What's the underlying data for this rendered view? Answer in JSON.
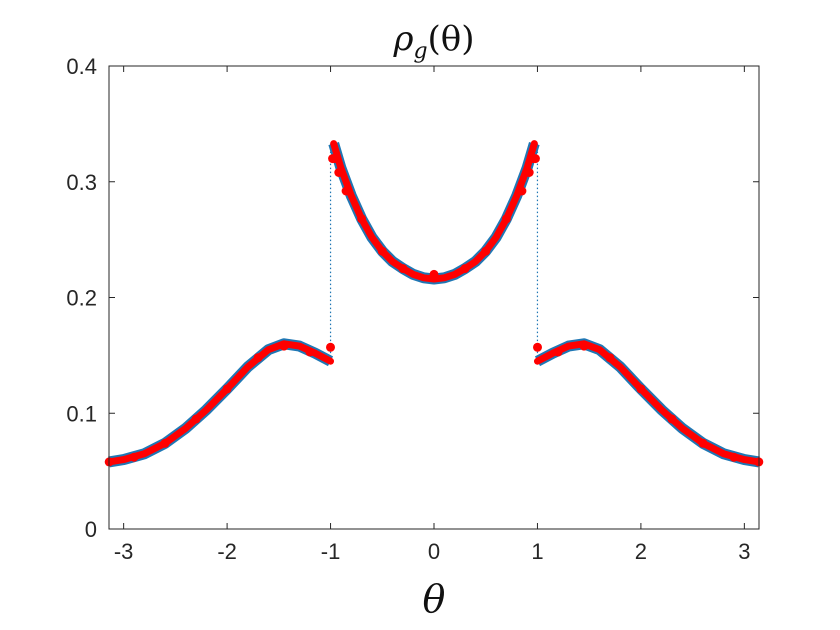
{
  "chart_data": {
    "type": "line",
    "title_parts": {
      "main": "ρ",
      "sub": "g",
      "tail": "(θ)"
    },
    "xlabel": "θ",
    "ylabel": "",
    "xlim": [
      -3.14159,
      3.14159
    ],
    "ylim": [
      0,
      0.4
    ],
    "xticks": [
      -3,
      -2,
      -1,
      0,
      1,
      2,
      3
    ],
    "xtick_labels": [
      "-3",
      "-2",
      "-1",
      "0",
      "1",
      "2",
      "3"
    ],
    "yticks": [
      0,
      0.1,
      0.2,
      0.3,
      0.4
    ],
    "ytick_labels": [
      "0",
      "0.1",
      "0.2",
      "0.3",
      "0.4"
    ],
    "grid": false,
    "legend": "none",
    "series": [
      {
        "kind": "thick-line",
        "color": "#1f77b4",
        "segments": [
          {
            "x": [
              -3.1416,
              -3.0,
              -2.8,
              -2.6,
              -2.4,
              -2.2,
              -2.0,
              -1.8,
              -1.6,
              -1.45,
              -1.3,
              -1.15,
              -1.0
            ],
            "y": [
              0.058,
              0.06,
              0.065,
              0.074,
              0.087,
              0.103,
              0.121,
              0.14,
              0.155,
              0.16,
              0.158,
              0.152,
              0.145
            ]
          },
          {
            "x": [
              -0.97,
              -0.9,
              -0.8,
              -0.7,
              -0.6,
              -0.5,
              -0.4,
              -0.3,
              -0.2,
              -0.1,
              0,
              0.1,
              0.2,
              0.3,
              0.4,
              0.5,
              0.6,
              0.7,
              0.8,
              0.9,
              0.97
            ],
            "y": [
              0.333,
              0.312,
              0.288,
              0.268,
              0.252,
              0.24,
              0.231,
              0.225,
              0.22,
              0.217,
              0.216,
              0.217,
              0.22,
              0.225,
              0.231,
              0.24,
              0.252,
              0.268,
              0.288,
              0.312,
              0.333
            ]
          },
          {
            "x": [
              1.0,
              1.15,
              1.3,
              1.45,
              1.6,
              1.8,
              2.0,
              2.2,
              2.4,
              2.6,
              2.8,
              3.0,
              3.1416
            ],
            "y": [
              0.145,
              0.152,
              0.158,
              0.16,
              0.155,
              0.14,
              0.121,
              0.103,
              0.087,
              0.074,
              0.065,
              0.06,
              0.058
            ]
          }
        ]
      },
      {
        "kind": "markers",
        "color": "#ff0000",
        "x": [
          -3.14,
          -2.9,
          -2.6,
          -2.3,
          -2.0,
          -1.7,
          -1.45,
          -1.2,
          -1.0,
          -0.98,
          -0.96,
          -0.92,
          -0.85,
          -0.7,
          -0.5,
          -0.3,
          0,
          0.3,
          0.5,
          0.7,
          0.85,
          0.92,
          0.96,
          0.98,
          1.0,
          1.2,
          1.45,
          1.7,
          2.0,
          2.3,
          2.6,
          2.9,
          3.14
        ],
        "y": [
          0.058,
          0.062,
          0.074,
          0.095,
          0.121,
          0.148,
          0.158,
          0.153,
          0.157,
          0.32,
          0.32,
          0.308,
          0.292,
          0.268,
          0.24,
          0.225,
          0.22,
          0.225,
          0.24,
          0.268,
          0.292,
          0.308,
          0.32,
          0.32,
          0.157,
          0.153,
          0.158,
          0.148,
          0.121,
          0.095,
          0.074,
          0.062,
          0.058
        ]
      },
      {
        "kind": "dotted-connector",
        "color": "#1f77b4",
        "segments": [
          {
            "x": [
              -1.0,
              -1.0
            ],
            "y": [
              0.145,
              0.333
            ]
          },
          {
            "x": [
              1.0,
              1.0
            ],
            "y": [
              0.145,
              0.333
            ]
          }
        ]
      }
    ]
  }
}
